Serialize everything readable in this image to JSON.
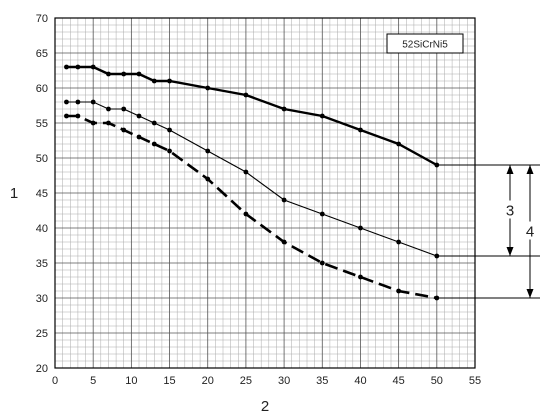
{
  "chart_data": {
    "type": "line",
    "legend_box": "52SiCrNi5",
    "xlabel": "2",
    "ylabel": "1",
    "xlim": [
      0,
      55
    ],
    "ylim": [
      20,
      70
    ],
    "x_ticks": [
      0,
      5,
      10,
      15,
      20,
      25,
      30,
      35,
      40,
      45,
      50,
      55
    ],
    "y_ticks": [
      20,
      25,
      30,
      35,
      40,
      45,
      50,
      55,
      60,
      65,
      70
    ],
    "grid": true,
    "series": [
      {
        "style": "thick-solid",
        "x": [
          1.5,
          3,
          5,
          7,
          9,
          11,
          13,
          15,
          20,
          25,
          30,
          35,
          40,
          45,
          50
        ],
        "y": [
          63,
          63,
          63,
          62,
          62,
          62,
          61,
          61,
          60,
          59,
          57,
          56,
          54,
          52,
          49
        ]
      },
      {
        "style": "thin-solid",
        "x": [
          1.5,
          3,
          5,
          7,
          9,
          11,
          13,
          15,
          20,
          25,
          30,
          35,
          40,
          45,
          50
        ],
        "y": [
          58,
          58,
          58,
          57,
          57,
          56,
          55,
          54,
          51,
          48,
          44,
          42,
          40,
          38,
          36
        ]
      },
      {
        "style": "thick-dashed",
        "x": [
          1.5,
          3,
          5,
          7,
          9,
          11,
          13,
          15,
          20,
          25,
          30,
          35,
          40,
          45,
          50
        ],
        "y": [
          56,
          56,
          55,
          55,
          54,
          53,
          52,
          51,
          47,
          42,
          38,
          35,
          33,
          31,
          30
        ]
      }
    ],
    "annotations": [
      {
        "label": "3",
        "from": 49,
        "to": 36
      },
      {
        "label": "4",
        "from": 49,
        "to": 30
      }
    ]
  }
}
